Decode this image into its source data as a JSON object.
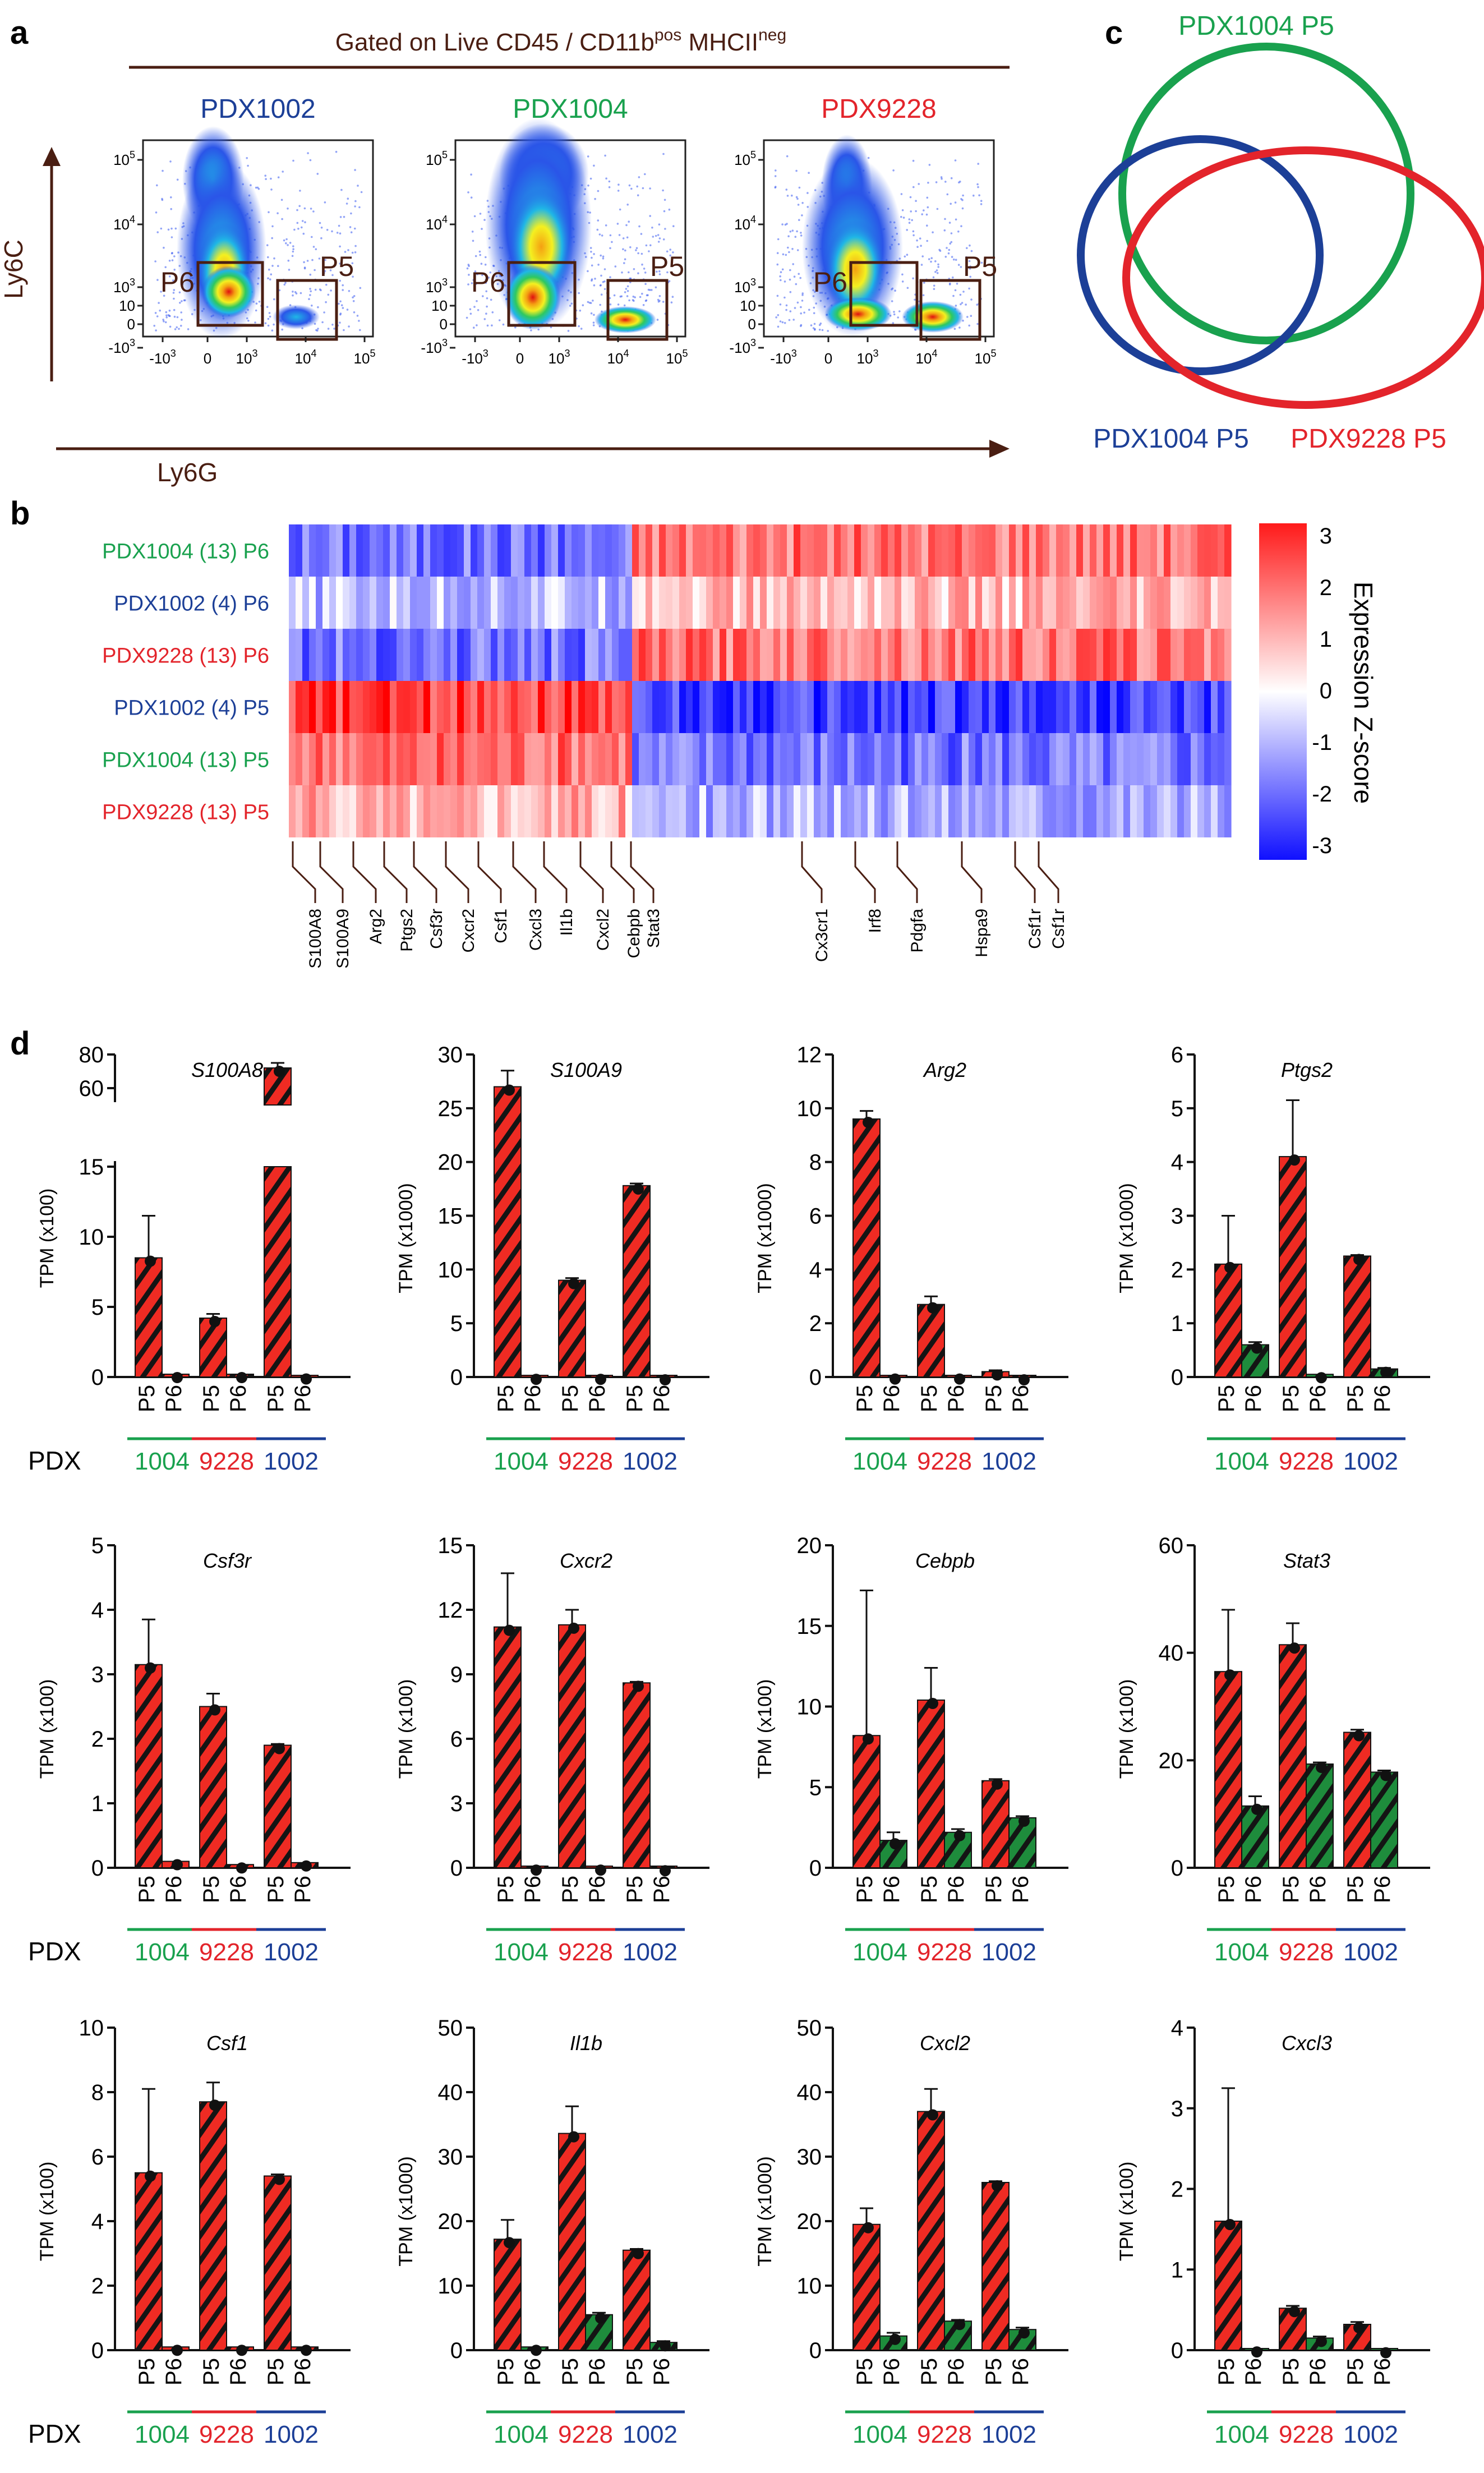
{
  "colors": {
    "green": "#19a14e",
    "red": "#e3242b",
    "blue": "#1c3f97",
    "brown": "#4a1e12",
    "bar_red": "#ef2b23",
    "bar_green": "#1e8c3c"
  },
  "panel_labels": {
    "a": "a",
    "b": "b",
    "c": "c",
    "d": "d"
  },
  "panel_a": {
    "gate_title": "Gated on Live CD45 / CD11b",
    "gate_sup1": "pos",
    "gate_mid": " MHCII",
    "gate_sup2": "neg",
    "y_label": "Ly6C",
    "x_label": "Ly6G",
    "gate_labels": [
      "P6",
      "P5"
    ],
    "plots": [
      {
        "title": "PDX1002",
        "color": "blue"
      },
      {
        "title": "PDX1004",
        "color": "green"
      },
      {
        "title": "PDX9228",
        "color": "red"
      }
    ],
    "y_ticks": [
      "10",
      "10",
      "10",
      "10",
      "0",
      "-10"
    ],
    "y_tick_exps": [
      "5",
      "4",
      "3",
      "",
      "",
      "3"
    ],
    "x_ticks": [
      "-10",
      "0",
      "10",
      "10",
      "10"
    ],
    "x_tick_exps": [
      "3",
      "",
      "3",
      "4",
      "5"
    ]
  },
  "panel_b": {
    "rows": [
      {
        "label": "PDX1004 (13) P6",
        "color": "green",
        "pattern": "up"
      },
      {
        "label": "PDX1002 (4) P6",
        "color": "blue",
        "pattern": "up_weak"
      },
      {
        "label": "PDX9228 (13) P6",
        "color": "red",
        "pattern": "up"
      },
      {
        "label": "PDX1002 (4) P5",
        "color": "blue",
        "pattern": "down_strong"
      },
      {
        "label": "PDX1004 (13) P5",
        "color": "green",
        "pattern": "down"
      },
      {
        "label": "PDX9228 (13) P5",
        "color": "red",
        "pattern": "down_weak"
      }
    ],
    "genes_left": [
      "S100A8",
      "S100A9",
      "Arg2",
      "Ptgs2",
      "Csf3r",
      "Cxcr2",
      "Csf1",
      "Cxcl3",
      "Il1b",
      "Cxcl2",
      "Cebpb",
      "Stat3"
    ],
    "genes_right": [
      "Cx3cr1",
      "Irf8",
      "Pdgfa",
      "Hspa9",
      "Csf1r",
      "Csf1r"
    ],
    "colorbar_ticks": [
      "3",
      "2",
      "1",
      "0",
      "-1",
      "-2",
      "-3"
    ],
    "colorbar_title": "Expression Z-score"
  },
  "panel_c": {
    "venn_labels": [
      {
        "text": "PDX1004 P5",
        "color": "green"
      },
      {
        "text": "PDX1004 P5",
        "color": "blue"
      },
      {
        "text": "PDX9228 P5",
        "color": "red"
      }
    ]
  },
  "panel_d": {
    "pdx_label": "PDX",
    "groups": [
      {
        "name": "1004",
        "color": "green"
      },
      {
        "name": "9228",
        "color": "red"
      },
      {
        "name": "1002",
        "color": "blue"
      }
    ],
    "sub_labels": [
      "P5",
      "P6"
    ],
    "chart_data": [
      {
        "type": "bar",
        "title": "S100A8",
        "ylabel": "TPM (x100)",
        "ylim": [
          0,
          80
        ],
        "y_ticks": [
          "0",
          "5",
          "10",
          "15",
          "60",
          "80"
        ],
        "broken_axis": true,
        "series": [
          {
            "name": "P5",
            "values": [
              8.5,
              4.2,
              72
            ]
          },
          {
            "name": "P6",
            "values": [
              0.2,
              0.2,
              0.1
            ]
          }
        ],
        "errors": [
          {
            "name": "P5",
            "values": [
              3.0,
              0.3,
              3
            ]
          },
          {
            "name": "P6",
            "values": [
              0,
              0,
              0
            ]
          }
        ],
        "p6_color": "red",
        "categories": [
          "1004",
          "9228",
          "1002"
        ]
      },
      {
        "type": "bar",
        "title": "S100A9",
        "ylabel": "TPM (x1000)",
        "ylim": [
          0,
          30
        ],
        "y_ticks": [
          "0",
          "5",
          "10",
          "15",
          "20",
          "25",
          "30"
        ],
        "series": [
          {
            "name": "P5",
            "values": [
              27,
              9,
              17.8
            ]
          },
          {
            "name": "P6",
            "values": [
              0.1,
              0.1,
              0.05
            ]
          }
        ],
        "errors": [
          {
            "name": "P5",
            "values": [
              1.5,
              0.2,
              0.2
            ]
          },
          {
            "name": "P6",
            "values": [
              0,
              0,
              0
            ]
          }
        ],
        "p6_color": "red",
        "categories": [
          "1004",
          "9228",
          "1002"
        ]
      },
      {
        "type": "bar",
        "title": "Arg2",
        "ylabel": "TPM (x1000)",
        "ylim": [
          0,
          12
        ],
        "y_ticks": [
          "0",
          "2",
          "4",
          "6",
          "8",
          "10",
          "12"
        ],
        "series": [
          {
            "name": "P5",
            "values": [
              9.6,
              2.7,
              0.2
            ]
          },
          {
            "name": "P6",
            "values": [
              0.05,
              0.05,
              0.02
            ]
          }
        ],
        "errors": [
          {
            "name": "P5",
            "values": [
              0.3,
              0.3,
              0.05
            ]
          },
          {
            "name": "P6",
            "values": [
              0,
              0,
              0
            ]
          }
        ],
        "p6_color": "red",
        "categories": [
          "1004",
          "9228",
          "1002"
        ]
      },
      {
        "type": "bar",
        "title": "Ptgs2",
        "ylabel": "TPM (x1000)",
        "ylim": [
          0,
          6
        ],
        "y_ticks": [
          "0",
          "1",
          "2",
          "3",
          "4",
          "5",
          "6"
        ],
        "series": [
          {
            "name": "P5",
            "values": [
              2.1,
              4.1,
              2.25
            ]
          },
          {
            "name": "P6",
            "values": [
              0.6,
              0.05,
              0.15
            ]
          }
        ],
        "errors": [
          {
            "name": "P5",
            "values": [
              0.9,
              1.05,
              0.02
            ]
          },
          {
            "name": "P6",
            "values": [
              0.05,
              0,
              0.02
            ]
          }
        ],
        "p6_color": "green",
        "categories": [
          "1004",
          "9228",
          "1002"
        ]
      },
      {
        "type": "bar",
        "title": "Csf3r",
        "ylabel": "TPM (x100)",
        "ylim": [
          0,
          5
        ],
        "y_ticks": [
          "0",
          "1",
          "2",
          "3",
          "4",
          "5"
        ],
        "series": [
          {
            "name": "P5",
            "values": [
              3.15,
              2.5,
              1.9
            ]
          },
          {
            "name": "P6",
            "values": [
              0.1,
              0.05,
              0.08
            ]
          }
        ],
        "errors": [
          {
            "name": "P5",
            "values": [
              0.7,
              0.2,
              0.02
            ]
          },
          {
            "name": "P6",
            "values": [
              0,
              0,
              0
            ]
          }
        ],
        "p6_color": "red",
        "categories": [
          "1004",
          "9228",
          "1002"
        ]
      },
      {
        "type": "bar",
        "title": "Cxcr2",
        "ylabel": "TPM (x100)",
        "ylim": [
          0,
          15
        ],
        "y_ticks": [
          "0",
          "3",
          "6",
          "9",
          "12",
          "15"
        ],
        "series": [
          {
            "name": "P5",
            "values": [
              11.2,
              11.3,
              8.6
            ]
          },
          {
            "name": "P6",
            "values": [
              0.05,
              0.05,
              0.02
            ]
          }
        ],
        "errors": [
          {
            "name": "P5",
            "values": [
              2.5,
              0.7,
              0.05
            ]
          },
          {
            "name": "P6",
            "values": [
              0,
              0,
              0
            ]
          }
        ],
        "p6_color": "red",
        "categories": [
          "1004",
          "9228",
          "1002"
        ]
      },
      {
        "type": "bar",
        "title": "Cebpb",
        "ylabel": "TPM (x100)",
        "ylim": [
          0,
          20
        ],
        "y_ticks": [
          "0",
          "5",
          "10",
          "15",
          "20"
        ],
        "series": [
          {
            "name": "P5",
            "values": [
              8.2,
              10.4,
              5.4
            ]
          },
          {
            "name": "P6",
            "values": [
              1.7,
              2.2,
              3.1
            ]
          }
        ],
        "errors": [
          {
            "name": "P5",
            "values": [
              9,
              2,
              0.1
            ]
          },
          {
            "name": "P6",
            "values": [
              0.5,
              0.2,
              0.1
            ]
          }
        ],
        "p6_color": "green",
        "categories": [
          "1004",
          "9228",
          "1002"
        ]
      },
      {
        "type": "bar",
        "title": "Stat3",
        "ylabel": "TPM (x100)",
        "ylim": [
          0,
          60
        ],
        "y_ticks": [
          "0",
          "20",
          "40",
          "60"
        ],
        "series": [
          {
            "name": "P5",
            "values": [
              36.5,
              41.5,
              25.2
            ]
          },
          {
            "name": "P6",
            "values": [
              11.5,
              19.3,
              17.8
            ]
          }
        ],
        "errors": [
          {
            "name": "P5",
            "values": [
              11.5,
              4,
              0.5
            ]
          },
          {
            "name": "P6",
            "values": [
              1.8,
              0.3,
              0.3
            ]
          }
        ],
        "p6_color": "green",
        "categories": [
          "1004",
          "9228",
          "1002"
        ]
      },
      {
        "type": "bar",
        "title": "Csf1",
        "ylabel": "TPM (x100)",
        "ylim": [
          0,
          10
        ],
        "y_ticks": [
          "0",
          "2",
          "4",
          "6",
          "8",
          "10"
        ],
        "series": [
          {
            "name": "P5",
            "values": [
              5.5,
              7.7,
              5.4
            ]
          },
          {
            "name": "P6",
            "values": [
              0.1,
              0.1,
              0.1
            ]
          }
        ],
        "errors": [
          {
            "name": "P5",
            "values": [
              2.6,
              0.6,
              0.05
            ]
          },
          {
            "name": "P6",
            "values": [
              0,
              0,
              0
            ]
          }
        ],
        "p6_color": "red",
        "categories": [
          "1004",
          "9228",
          "1002"
        ]
      },
      {
        "type": "bar",
        "title": "Il1b",
        "ylabel": "TPM (x1000)",
        "ylim": [
          0,
          50
        ],
        "y_ticks": [
          "0",
          "10",
          "20",
          "30",
          "40",
          "50"
        ],
        "series": [
          {
            "name": "P5",
            "values": [
              17.2,
              33.6,
              15.5
            ]
          },
          {
            "name": "P6",
            "values": [
              0.5,
              5.5,
              1.2
            ]
          }
        ],
        "errors": [
          {
            "name": "P5",
            "values": [
              3,
              4.2,
              0.2
            ]
          },
          {
            "name": "P6",
            "values": [
              0,
              0.3,
              0.2
            ]
          }
        ],
        "p6_color": "green",
        "categories": [
          "1004",
          "9228",
          "1002"
        ]
      },
      {
        "type": "bar",
        "title": "Cxcl2",
        "ylabel": "TPM (x1000)",
        "ylim": [
          0,
          50
        ],
        "y_ticks": [
          "0",
          "10",
          "20",
          "30",
          "40",
          "50"
        ],
        "series": [
          {
            "name": "P5",
            "values": [
              19.5,
              37,
              26
            ]
          },
          {
            "name": "P6",
            "values": [
              2.2,
              4.5,
              3.2
            ]
          }
        ],
        "errors": [
          {
            "name": "P5",
            "values": [
              2.5,
              3.5,
              0.2
            ]
          },
          {
            "name": "P6",
            "values": [
              0.5,
              0.2,
              0.3
            ]
          }
        ],
        "p6_color": "green",
        "categories": [
          "1004",
          "9228",
          "1002"
        ]
      },
      {
        "type": "bar",
        "title": "Cxcl3",
        "ylabel": "TPM (x100)",
        "ylim": [
          0,
          4
        ],
        "y_ticks": [
          "0",
          "1",
          "2",
          "3",
          "4"
        ],
        "series": [
          {
            "name": "P5",
            "values": [
              1.6,
              0.52,
              0.32
            ]
          },
          {
            "name": "P6",
            "values": [
              0.02,
              0.15,
              0.01
            ]
          }
        ],
        "errors": [
          {
            "name": "P5",
            "values": [
              1.65,
              0.03,
              0.03
            ]
          },
          {
            "name": "P6",
            "values": [
              0,
              0.02,
              0
            ]
          }
        ],
        "p6_color": "green",
        "categories": [
          "1004",
          "9228",
          "1002"
        ]
      }
    ]
  }
}
